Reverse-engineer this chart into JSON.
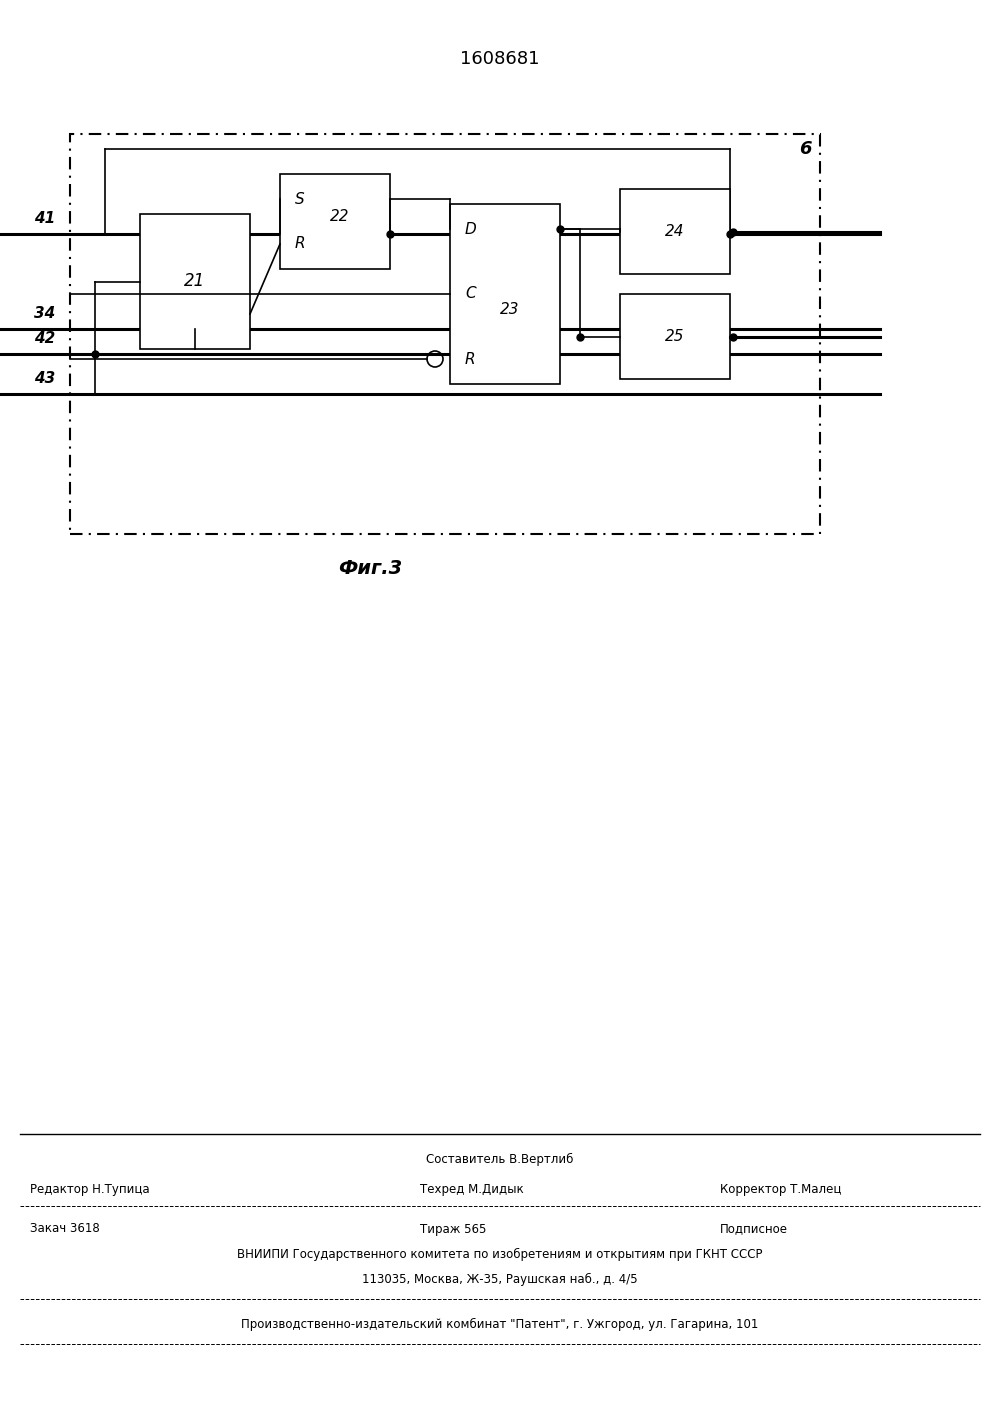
{
  "title": "1608681",
  "bg_color": "#ffffff",
  "footer_sestavitel": "Составитель В.Вертлиб",
  "footer_redaktor": "Редактор Н.Тупица",
  "footer_tehred": "Техред М.Дидык",
  "footer_korrektor": "Корректор Т.Малец",
  "footer_zakaz": "Закач 3618",
  "footer_tirazh": "Тираж 565",
  "footer_podpisnoe": "Подписное",
  "footer_vniipи1": "ВНИИПИ Государственного комитета по изобретениям и открытиям при ГКНТ СССР",
  "footer_vniipи2": "113035, Москва, Ж-35, Раушская наб., д. 4/5",
  "footer_proizv": "Производственно-издательский комбинат \"Патент\", г. Ужгород, ул. Гагарина, 101",
  "caption": "Фиг.3"
}
